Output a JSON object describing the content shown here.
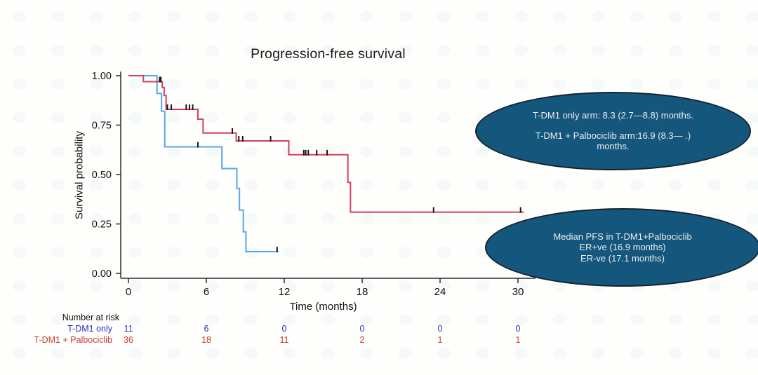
{
  "chart_data": {
    "type": "line",
    "chart_kind": "kaplan-meier-step",
    "title": "Progression-free survival",
    "xlabel": "Time (months)",
    "ylabel": "Survival probability",
    "xlim": [
      0,
      31.5
    ],
    "ylim": [
      0.0,
      1.0
    ],
    "x_ticks": [
      0,
      6,
      12,
      18,
      24,
      30
    ],
    "y_ticks": [
      "1.00",
      "0.75",
      "0.50",
      "0.25",
      "0.00"
    ],
    "grid": false,
    "legend": "none",
    "censor_color": "#161616",
    "series": [
      {
        "name": "T-DM1 only",
        "color": "#57A7EA",
        "steps": [
          [
            0,
            1.0
          ],
          [
            2.2,
            0.91
          ],
          [
            2.55,
            0.82
          ],
          [
            2.8,
            0.64
          ],
          [
            7.2,
            0.53
          ],
          [
            8.35,
            0.43
          ],
          [
            8.55,
            0.32
          ],
          [
            8.85,
            0.21
          ],
          [
            9.05,
            0.11
          ],
          [
            11.55,
            0.11
          ]
        ],
        "censor_marks": [
          [
            5.35,
            0.64
          ],
          [
            11.45,
            0.11
          ]
        ]
      },
      {
        "name": "T-DM1 + Palbociclib",
        "color": "#D23F64",
        "steps": [
          [
            0,
            1.0
          ],
          [
            1.15,
            0.97
          ],
          [
            2.6,
            0.94
          ],
          [
            2.75,
            0.9
          ],
          [
            2.9,
            0.83
          ],
          [
            5.35,
            0.78
          ],
          [
            5.75,
            0.71
          ],
          [
            8.3,
            0.67
          ],
          [
            12.35,
            0.6
          ],
          [
            16.9,
            0.46
          ],
          [
            17.1,
            0.31
          ],
          [
            30.45,
            0.31
          ]
        ],
        "censor_marks": [
          [
            2.4,
            0.97
          ],
          [
            2.5,
            0.97
          ],
          [
            3.0,
            0.83
          ],
          [
            3.3,
            0.83
          ],
          [
            4.45,
            0.83
          ],
          [
            4.7,
            0.83
          ],
          [
            4.95,
            0.83
          ],
          [
            8.0,
            0.71
          ],
          [
            8.5,
            0.67
          ],
          [
            8.8,
            0.67
          ],
          [
            10.95,
            0.67
          ],
          [
            13.5,
            0.6
          ],
          [
            13.65,
            0.6
          ],
          [
            13.85,
            0.6
          ],
          [
            14.5,
            0.6
          ],
          [
            15.3,
            0.6
          ],
          [
            23.5,
            0.31
          ],
          [
            30.2,
            0.31
          ]
        ]
      }
    ],
    "risk_table": {
      "title": "Number at risk",
      "time_points": [
        0,
        6,
        12,
        18,
        24,
        30
      ],
      "rows": [
        {
          "label": "T-DM1 only",
          "color": "#2433C4",
          "values": [
            "11",
            "6",
            "0",
            "0",
            "0",
            "0"
          ]
        },
        {
          "label": "T-DM1 + Palbociclib",
          "color": "#CB3A31",
          "values": [
            "36",
            "18",
            "11",
            "2",
            "1",
            "1"
          ]
        }
      ]
    }
  },
  "annotations": [
    {
      "id": "median-pfs-by-arm",
      "fill": "#15577C",
      "text_color": "#EDEDED",
      "lines": [
        "T-DM1 only arm: 8.3 (2.7—8.8) months.",
        "",
        "T-DM1 + Palbociclib arm:16.9 (8.3— .)",
        "months."
      ]
    },
    {
      "id": "median-pfs-by-er-status",
      "fill": "#15577C",
      "text_color": "#EDEDED",
      "lines": [
        "Median PFS in T-DM1+Palbociclib",
        "ER+ve (16.9 months)",
        "ER-ve (17.1 months)"
      ]
    }
  ]
}
